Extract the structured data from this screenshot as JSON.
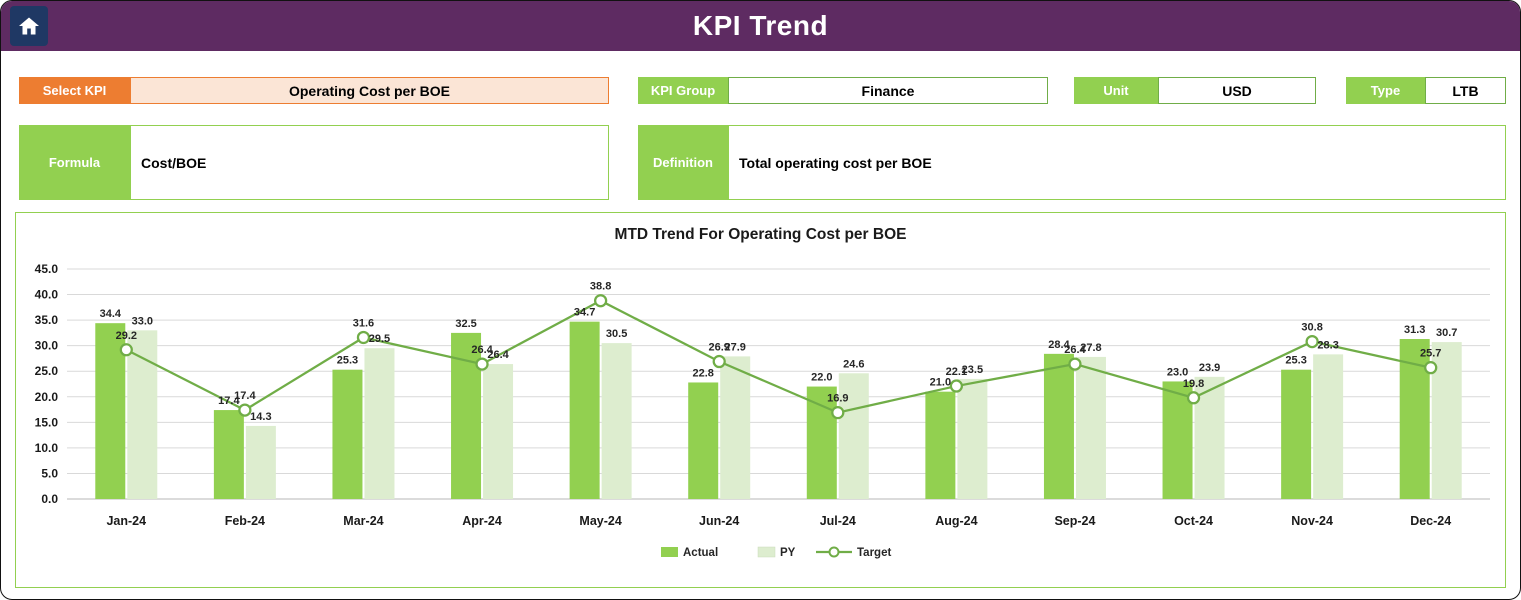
{
  "header": {
    "title": "KPI Trend",
    "home_icon": "home-icon"
  },
  "controls": {
    "select_kpi": {
      "label": "Select KPI",
      "value": "Operating Cost per BOE"
    },
    "kpi_group": {
      "label": "KPI Group",
      "value": "Finance"
    },
    "unit": {
      "label": "Unit",
      "value": "USD"
    },
    "type": {
      "label": "Type",
      "value": "LTB"
    },
    "formula": {
      "label": "Formula",
      "value": "Cost/BOE"
    },
    "definition": {
      "label": "Definition",
      "value": "Total operating cost per BOE"
    }
  },
  "colors": {
    "header_purple": "#5E2B62",
    "home_tile_navy": "#1F3864",
    "accent_orange": "#ED7D31",
    "accent_green": "#92D050",
    "line_green": "#70AD47",
    "py_bar_green": "#DDEDCF"
  },
  "chart_data": {
    "type": "bar",
    "subtype": "combo-clustered-bar-with-line",
    "title": "MTD Trend For Operating Cost per BOE",
    "categories": [
      "Jan-24",
      "Feb-24",
      "Mar-24",
      "Apr-24",
      "May-24",
      "Jun-24",
      "Jul-24",
      "Aug-24",
      "Sep-24",
      "Oct-24",
      "Nov-24",
      "Dec-24"
    ],
    "series": [
      {
        "name": "Actual",
        "type": "bar",
        "color": "#92D050",
        "values": [
          34.4,
          17.4,
          25.3,
          32.5,
          34.7,
          22.8,
          22.0,
          21.0,
          28.4,
          23.0,
          25.3,
          31.3
        ]
      },
      {
        "name": "PY",
        "type": "bar",
        "color": "#DDEDCF",
        "values": [
          33.0,
          14.3,
          29.5,
          26.4,
          30.5,
          27.9,
          24.6,
          23.5,
          27.8,
          23.9,
          28.3,
          30.7
        ]
      },
      {
        "name": "Target",
        "type": "line",
        "color": "#70AD47",
        "values": [
          29.2,
          17.4,
          31.6,
          26.4,
          38.8,
          26.9,
          16.9,
          22.1,
          26.4,
          19.8,
          30.8,
          25.7
        ]
      }
    ],
    "xlabel": "",
    "ylabel": "",
    "ylim": [
      0,
      45
    ],
    "ytick_step": 5,
    "grid": true,
    "legend_position": "bottom",
    "legend": [
      "Actual",
      "PY",
      "Target"
    ]
  }
}
